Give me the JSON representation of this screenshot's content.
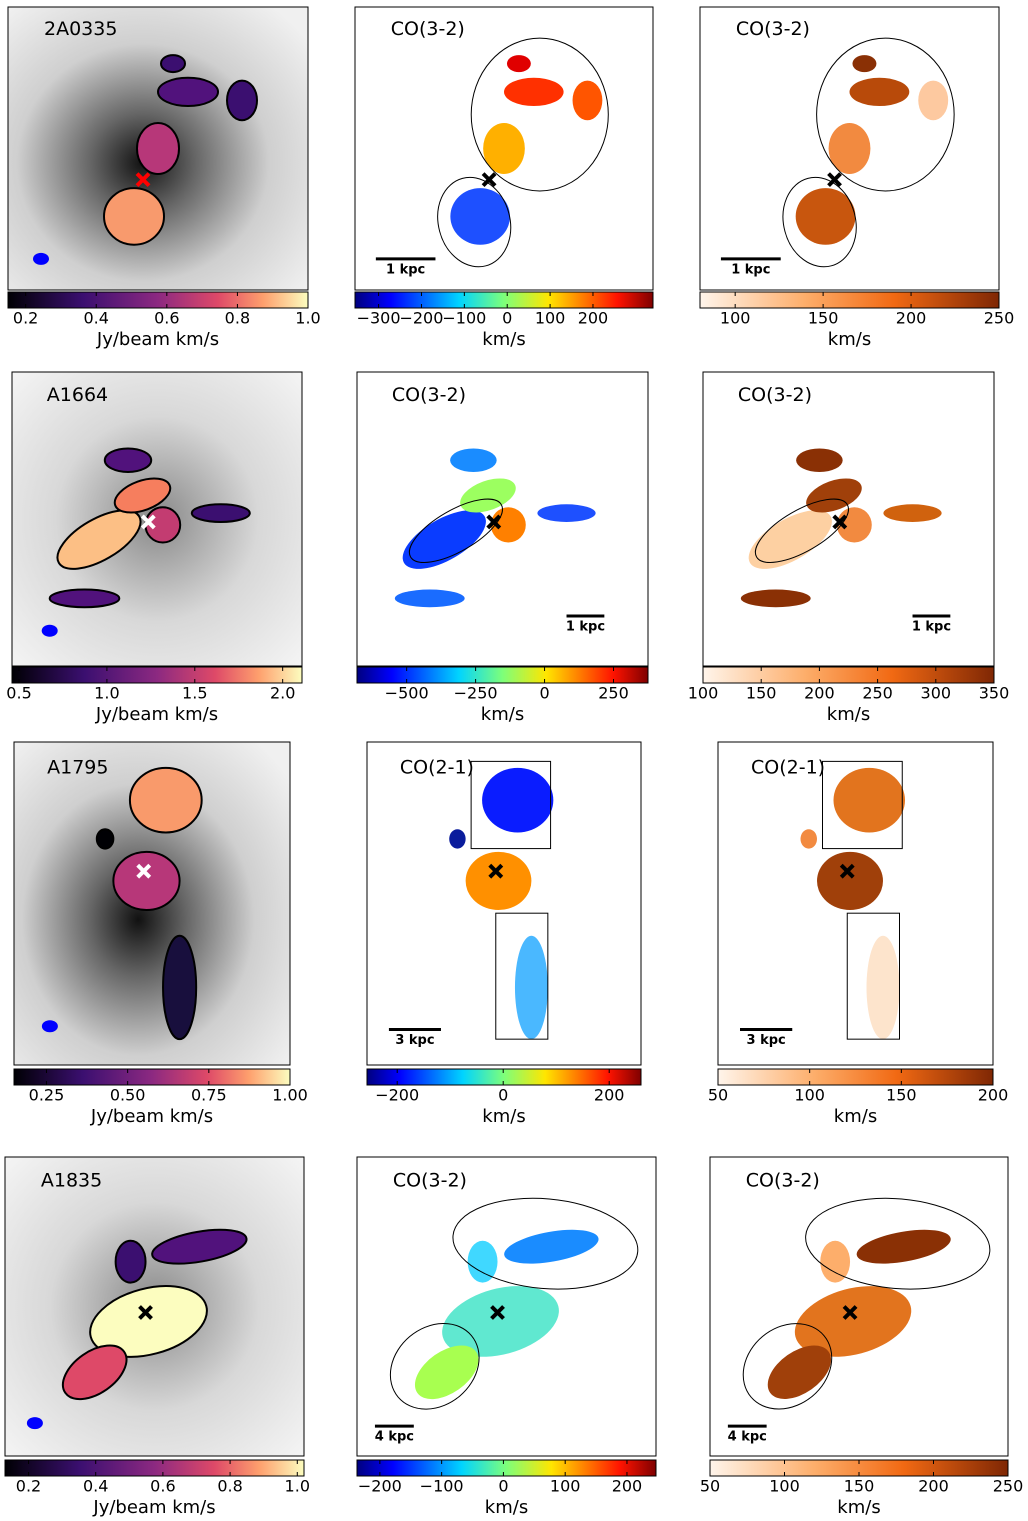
{
  "rows": [
    {
      "panels": [
        {
          "label": "2A0335",
          "colorbar": {
            "lim": [
              0.15,
              1.0
            ],
            "ticks": [
              0.2,
              0.4,
              0.6,
              0.8,
              {
                "value": 1,
                "label": "1.0"
              }
            ],
            "label": "Jy/beam km/s"
          }
        },
        {
          "label": "CO(3-2)",
          "scale_bar": "1 kpc",
          "colorbar": {
            "lim": [
              -355,
              340
            ],
            "ticks": [
              {
                "value": -300,
                "label": "−300"
              },
              {
                "value": -200,
                "label": "−200"
              },
              {
                "value": -100,
                "label": "−100"
              },
              0,
              100,
              200
            ],
            "label": "km/s"
          }
        },
        {
          "label": "CO(3-2)",
          "scale_bar": "1 kpc",
          "colorbar": {
            "lim": [
              80,
              250
            ],
            "ticks": [
              100,
              150,
              200,
              250
            ],
            "label": "km/s"
          }
        }
      ]
    },
    {
      "panels": [
        {
          "label": "A1664",
          "colorbar": {
            "lim": [
              0.46,
              2.11
            ],
            "ticks": [
              0.5,
              {
                "value": 1,
                "label": "1.0"
              },
              1.5,
              {
                "value": 2,
                "label": "2.0"
              }
            ],
            "label": "Jy/beam km/s"
          }
        },
        {
          "label": "CO(3-2)",
          "scale_bar": "1 kpc",
          "colorbar": {
            "lim": [
              -680,
              375
            ],
            "ticks": [
              {
                "value": -500,
                "label": "−500"
              },
              {
                "value": -250,
                "label": "−250"
              },
              0,
              250
            ],
            "label": "km/s"
          }
        },
        {
          "label": "CO(3-2)",
          "scale_bar": "1 kpc",
          "colorbar": {
            "lim": [
              100,
              350
            ],
            "ticks": [
              100,
              150,
              200,
              250,
              300,
              350
            ],
            "label": "km/s"
          }
        }
      ]
    },
    {
      "panels": [
        {
          "label": "A1795",
          "colorbar": {
            "lim": [
              0.15,
              1.0
            ],
            "ticks": [
              0.25,
              {
                "value": 0.5,
                "label": "0.50"
              },
              0.75,
              {
                "value": 1,
                "label": "1.00"
              }
            ],
            "label": "Jy/beam km/s"
          }
        },
        {
          "label": "CO(2-1)",
          "scale_bar": "3 kpc",
          "colorbar": {
            "lim": [
              -257,
              260
            ],
            "ticks": [
              {
                "value": -200,
                "label": "−200"
              },
              0,
              200
            ],
            "label": "km/s"
          }
        },
        {
          "label": "CO(2-1)",
          "scale_bar": "3 kpc",
          "colorbar": {
            "lim": [
              50,
              200
            ],
            "ticks": [
              50,
              100,
              150,
              200
            ],
            "label": "km/s"
          }
        }
      ]
    },
    {
      "panels": [
        {
          "label": "A1835",
          "colorbar": {
            "lim": [
              0.13,
              1.02
            ],
            "ticks": [
              0.2,
              0.4,
              0.6,
              0.8,
              {
                "value": 1,
                "label": "1.0"
              }
            ],
            "label": "Jy/beam km/s"
          }
        },
        {
          "label": "CO(3-2)",
          "scale_bar": "4 kpc",
          "colorbar": {
            "lim": [
              -237,
              247
            ],
            "ticks": [
              {
                "value": -200,
                "label": "−200"
              },
              {
                "value": -100,
                "label": "−100"
              },
              0,
              100,
              200
            ],
            "label": "km/s"
          }
        },
        {
          "label": "CO(3-2)",
          "scale_bar": "4 kpc",
          "colorbar": {
            "lim": [
              50,
              250
            ],
            "ticks": [
              50,
              100,
              150,
              200,
              250
            ],
            "label": "km/s"
          }
        }
      ]
    }
  ]
}
